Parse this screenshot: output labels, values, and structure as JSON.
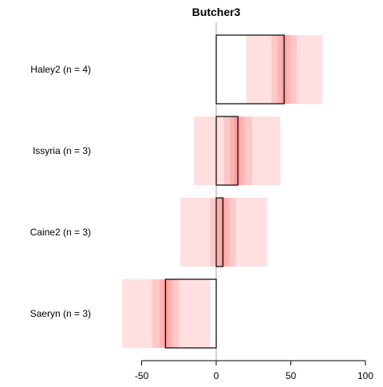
{
  "chart_data": {
    "type": "bar",
    "title": "Butcher3",
    "xlabel": "",
    "ylabel": "",
    "xlim": [
      -63,
      100
    ],
    "x_ticks": [
      -50,
      0,
      50,
      100
    ],
    "x_tick_labels": [
      "-50",
      "0",
      "50",
      "100"
    ],
    "zero_line": 0,
    "grid": false,
    "legend": "none",
    "categories": [
      "Haley2 (n = 4)",
      "Issyria (n = 3)",
      "Caine2 (n = 3)",
      "Saeryn (n = 3)"
    ],
    "values": [
      45.5,
      14.5,
      4.5,
      -34
    ],
    "bands": [
      {
        "outer": [
          20,
          71
        ],
        "mid": [
          37,
          54
        ],
        "inner": [
          41,
          50
        ],
        "core": [
          44,
          47
        ]
      },
      {
        "outer": [
          -15,
          43
        ],
        "mid": [
          5,
          24
        ],
        "inner": [
          9,
          19
        ],
        "core": [
          12,
          16
        ]
      },
      {
        "outer": [
          -24,
          34
        ],
        "mid": [
          -4,
          13
        ],
        "inner": [
          0,
          9
        ],
        "core": [
          3,
          6
        ]
      },
      {
        "outer": [
          -63,
          -4
        ],
        "mid": [
          -43,
          -25
        ],
        "inner": [
          -38,
          -29
        ],
        "core": [
          -35,
          -32
        ]
      }
    ],
    "colors": {
      "band_outer": "#ffdfdf",
      "band_mid": "#ffc8c8",
      "band_inner": "#ffb3b3",
      "band_core": "#ff9e9e",
      "bar_stroke": "#000000",
      "axis": "#000000",
      "zero_line": "#aaaaaa",
      "text": "#000000"
    }
  }
}
